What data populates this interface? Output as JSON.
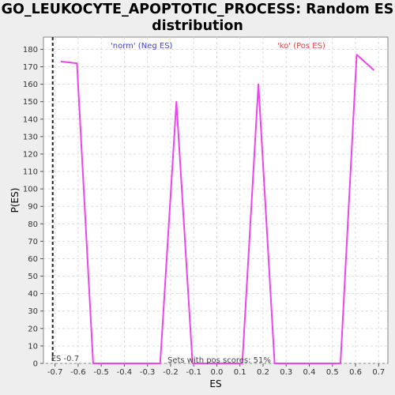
{
  "chart_data": {
    "type": "line",
    "title_line1": "GO_LEUKOCYTE_APOPTOTIC_PROCESS: Random ES",
    "title_line2": "distribution",
    "xlabel": "ES",
    "ylabel": "P(ES)",
    "xlim": [
      -0.75,
      0.74
    ],
    "ylim": [
      0,
      187
    ],
    "x_ticks": [
      -0.7,
      -0.6,
      -0.5,
      -0.4,
      -0.3,
      -0.2,
      -0.1,
      0.0,
      0.1,
      0.2,
      0.3,
      0.4,
      0.5,
      0.6,
      0.7
    ],
    "x_tick_labels": [
      "-0.7",
      "-0.6",
      "-0.5",
      "-0.4",
      "-0.3",
      "-0.2",
      "-0.1",
      "0.0",
      "0.1",
      "0.2",
      "0.3",
      "0.4",
      "0.5",
      "0.6",
      "0.7"
    ],
    "y_ticks": [
      0,
      10,
      20,
      30,
      40,
      50,
      60,
      70,
      80,
      90,
      100,
      110,
      120,
      130,
      140,
      150,
      160,
      170,
      180
    ],
    "grid": true,
    "series": [
      {
        "color": "#ee44ee",
        "x": [
          -0.675,
          -0.605,
          -0.535,
          -0.245,
          -0.175,
          -0.105,
          0.11,
          0.18,
          0.25,
          0.535,
          0.605,
          0.68
        ],
        "y": [
          173,
          172,
          0,
          0,
          150,
          0,
          0,
          160,
          0,
          0,
          177,
          168
        ]
      }
    ],
    "observed_es_marker": {
      "x": -0.71,
      "label": "ES -0.7",
      "style": "dashed",
      "color": "#222222"
    },
    "annotations": {
      "neg_label": "'norm' (Neg ES)",
      "neg_color": "#4444cc",
      "pos_label": "'ko' (Pos ES)",
      "pos_color": "#dd4444",
      "footer": "Sets with pos scores: 51%"
    }
  }
}
